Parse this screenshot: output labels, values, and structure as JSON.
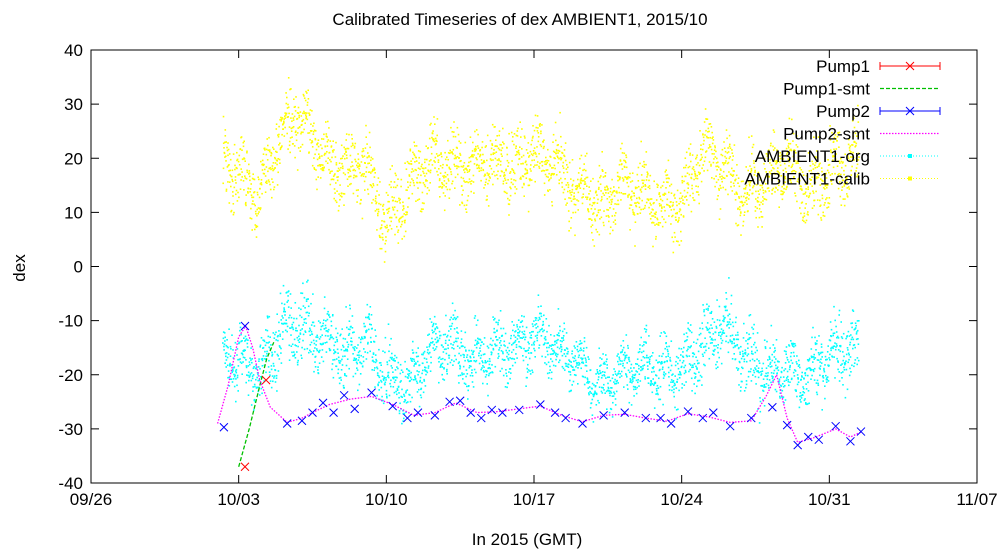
{
  "chart_data": {
    "type": "scatter",
    "title": "Calibrated Timeseries of dex AMBIENT1, 2015/10",
    "xlabel": "In 2015 (GMT)",
    "ylabel": "dex",
    "x_ticks": [
      "09/26",
      "10/03",
      "10/10",
      "10/17",
      "10/24",
      "10/31",
      "11/07"
    ],
    "x_tick_days": [
      0,
      7,
      14,
      21,
      28,
      35,
      42
    ],
    "xlim_days": [
      0,
      42
    ],
    "ylim": [
      -40,
      40
    ],
    "y_ticks": [
      -40,
      -30,
      -20,
      -10,
      0,
      10,
      20,
      30,
      40
    ],
    "grid": false,
    "legend_position": "top-right",
    "series": [
      {
        "name": "Pump1",
        "color": "#ff0000",
        "style": "points-errorbars",
        "marker": "x",
        "points": [
          {
            "x": "10/03",
            "y": -37
          },
          {
            "x": "10/04",
            "y": -21
          }
        ]
      },
      {
        "name": "Pump1-smt",
        "color": "#00c000",
        "style": "dashed-line",
        "points": [
          {
            "x": "10/03",
            "y": -37
          },
          {
            "x": "10/03",
            "y": -30
          },
          {
            "x": "10/04",
            "y": -22
          },
          {
            "x": "10/04",
            "y": -17
          },
          {
            "x": "10/04",
            "y": -14
          }
        ]
      },
      {
        "name": "Pump2",
        "color": "#0000ff",
        "style": "points-errorbars",
        "marker": "x",
        "points": [
          {
            "x": "10/02",
            "y": -29.7
          },
          {
            "x": "10/03",
            "y": -11
          },
          {
            "x": "10/05",
            "y": -29
          },
          {
            "x": "10/06",
            "y": -28.5
          },
          {
            "x": "10/06",
            "y": -27
          },
          {
            "x": "10/07",
            "y": -25.2
          },
          {
            "x": "10/07",
            "y": -27
          },
          {
            "x": "10/08",
            "y": -23.8
          },
          {
            "x": "10/08",
            "y": -26.3
          },
          {
            "x": "10/09",
            "y": -23.3
          },
          {
            "x": "10/10",
            "y": -25.8
          },
          {
            "x": "10/11",
            "y": -28
          },
          {
            "x": "10/11",
            "y": -27
          },
          {
            "x": "10/12",
            "y": -27.5
          },
          {
            "x": "10/13",
            "y": -25
          },
          {
            "x": "10/13",
            "y": -24.8
          },
          {
            "x": "10/14",
            "y": -27
          },
          {
            "x": "10/14",
            "y": -28
          },
          {
            "x": "10/15",
            "y": -26.5
          },
          {
            "x": "10/15",
            "y": -27
          },
          {
            "x": "10/16",
            "y": -26.5
          },
          {
            "x": "10/17",
            "y": -25.5
          },
          {
            "x": "10/18",
            "y": -27
          },
          {
            "x": "10/18",
            "y": -28
          },
          {
            "x": "10/19",
            "y": -29
          },
          {
            "x": "10/20",
            "y": -27.5
          },
          {
            "x": "10/21",
            "y": -27
          },
          {
            "x": "10/22",
            "y": -28
          },
          {
            "x": "10/23",
            "y": -28
          },
          {
            "x": "10/23",
            "y": -29
          },
          {
            "x": "10/24",
            "y": -26.8
          },
          {
            "x": "10/25",
            "y": -28
          },
          {
            "x": "10/25",
            "y": -27
          },
          {
            "x": "10/26",
            "y": -29.5
          },
          {
            "x": "10/27",
            "y": -28
          },
          {
            "x": "10/28",
            "y": -26
          },
          {
            "x": "10/29",
            "y": -29.3
          },
          {
            "x": "10/29",
            "y": -33
          },
          {
            "x": "10/30",
            "y": -31.5
          },
          {
            "x": "10/30",
            "y": -32
          },
          {
            "x": "10/31",
            "y": -29.5
          },
          {
            "x": "11/01",
            "y": -32.3
          },
          {
            "x": "11/01",
            "y": -30.5
          }
        ]
      },
      {
        "name": "Pump2-smt",
        "color": "#ff00ff",
        "style": "dotted-line",
        "points": [
          {
            "x": "10/02",
            "y": -29
          },
          {
            "x": "10/02",
            "y": -22
          },
          {
            "x": "10/03",
            "y": -13
          },
          {
            "x": "10/03",
            "y": -11
          },
          {
            "x": "10/03",
            "y": -15
          },
          {
            "x": "10/04",
            "y": -21
          },
          {
            "x": "10/04",
            "y": -26
          },
          {
            "x": "10/05",
            "y": -28.8
          },
          {
            "x": "10/06",
            "y": -28
          },
          {
            "x": "10/06",
            "y": -27
          },
          {
            "x": "10/07",
            "y": -25.5
          },
          {
            "x": "10/08",
            "y": -24.5
          },
          {
            "x": "10/09",
            "y": -24
          },
          {
            "x": "10/10",
            "y": -25.5
          },
          {
            "x": "10/11",
            "y": -27.5
          },
          {
            "x": "10/12",
            "y": -27
          },
          {
            "x": "10/13",
            "y": -25.2
          },
          {
            "x": "10/14",
            "y": -27
          },
          {
            "x": "10/15",
            "y": -26.8
          },
          {
            "x": "10/16",
            "y": -26.3
          },
          {
            "x": "10/17",
            "y": -25.8
          },
          {
            "x": "10/18",
            "y": -27.5
          },
          {
            "x": "10/19",
            "y": -28.7
          },
          {
            "x": "10/20",
            "y": -27.5
          },
          {
            "x": "10/21",
            "y": -27.3
          },
          {
            "x": "10/22",
            "y": -28
          },
          {
            "x": "10/23",
            "y": -28.6
          },
          {
            "x": "10/24",
            "y": -27.2
          },
          {
            "x": "10/25",
            "y": -27.8
          },
          {
            "x": "10/26",
            "y": -28.8
          },
          {
            "x": "10/27",
            "y": -28.5
          },
          {
            "x": "10/28",
            "y": -24
          },
          {
            "x": "10/28",
            "y": -20
          },
          {
            "x": "10/29",
            "y": -28
          },
          {
            "x": "10/29",
            "y": -32.5
          },
          {
            "x": "10/30",
            "y": -31.6
          },
          {
            "x": "10/31",
            "y": -30
          },
          {
            "x": "11/01",
            "y": -31.5
          },
          {
            "x": "11/01",
            "y": -30.6
          }
        ]
      },
      {
        "name": "AMBIENT1-org",
        "color": "#00ffff",
        "style": "dense-points",
        "date_range": [
          "10/02",
          "11/01"
        ],
        "typical_range": [
          -30,
          -5
        ],
        "profile": {
          "x": [
            "10/02",
            "10/03",
            "10/04",
            "10/05",
            "10/06",
            "10/07",
            "10/08",
            "10/09",
            "10/10",
            "10/11",
            "10/12",
            "10/13",
            "10/14",
            "10/15",
            "10/16",
            "10/17",
            "10/18",
            "10/19",
            "10/20",
            "10/21",
            "10/22",
            "10/23",
            "10/24",
            "10/25",
            "10/26",
            "10/27",
            "10/28",
            "10/29",
            "10/30",
            "10/31",
            "11/01"
          ],
          "y": [
            -16,
            -17,
            -20,
            -12,
            -11,
            -14,
            -16,
            -14,
            -20,
            -22,
            -16,
            -14,
            -18,
            -16,
            -15,
            -13,
            -15,
            -17,
            -22,
            -20,
            -18,
            -19,
            -20,
            -14,
            -10,
            -17,
            -20,
            -19,
            -21,
            -16,
            -15
          ],
          "spread": [
            4,
            4,
            4,
            5,
            5,
            5,
            5,
            5,
            5,
            4,
            4,
            5,
            5,
            4,
            4,
            4,
            4,
            4,
            4,
            4,
            4,
            5,
            5,
            5,
            5,
            5,
            5,
            4,
            4,
            5,
            5
          ]
        }
      },
      {
        "name": "AMBIENT1-calib",
        "color": "#ffff00",
        "style": "dense-points",
        "date_range": [
          "10/02",
          "11/01"
        ],
        "typical_range": [
          0,
          30
        ],
        "profile": {
          "x": [
            "10/02",
            "10/03",
            "10/04",
            "10/05",
            "10/06",
            "10/07",
            "10/08",
            "10/09",
            "10/10",
            "10/11",
            "10/12",
            "10/13",
            "10/14",
            "10/15",
            "10/16",
            "10/17",
            "10/18",
            "10/19",
            "10/20",
            "10/21",
            "10/22",
            "10/23",
            "10/24",
            "10/25",
            "10/26",
            "10/27",
            "10/28",
            "10/29",
            "10/30",
            "10/31",
            "11/01"
          ],
          "y": [
            20,
            17,
            14,
            25,
            27,
            20,
            18,
            19,
            8,
            14,
            20,
            18,
            18,
            20,
            18,
            21,
            19,
            14,
            12,
            15,
            14,
            12,
            11,
            22,
            18,
            13,
            16,
            19,
            14,
            18,
            20
          ],
          "spread": [
            5,
            5,
            5,
            5,
            5,
            5,
            5,
            5,
            5,
            5,
            5,
            5,
            5,
            5,
            5,
            5,
            5,
            5,
            5,
            5,
            5,
            5,
            5,
            5,
            5,
            5,
            5,
            5,
            5,
            5,
            5
          ]
        }
      }
    ]
  }
}
